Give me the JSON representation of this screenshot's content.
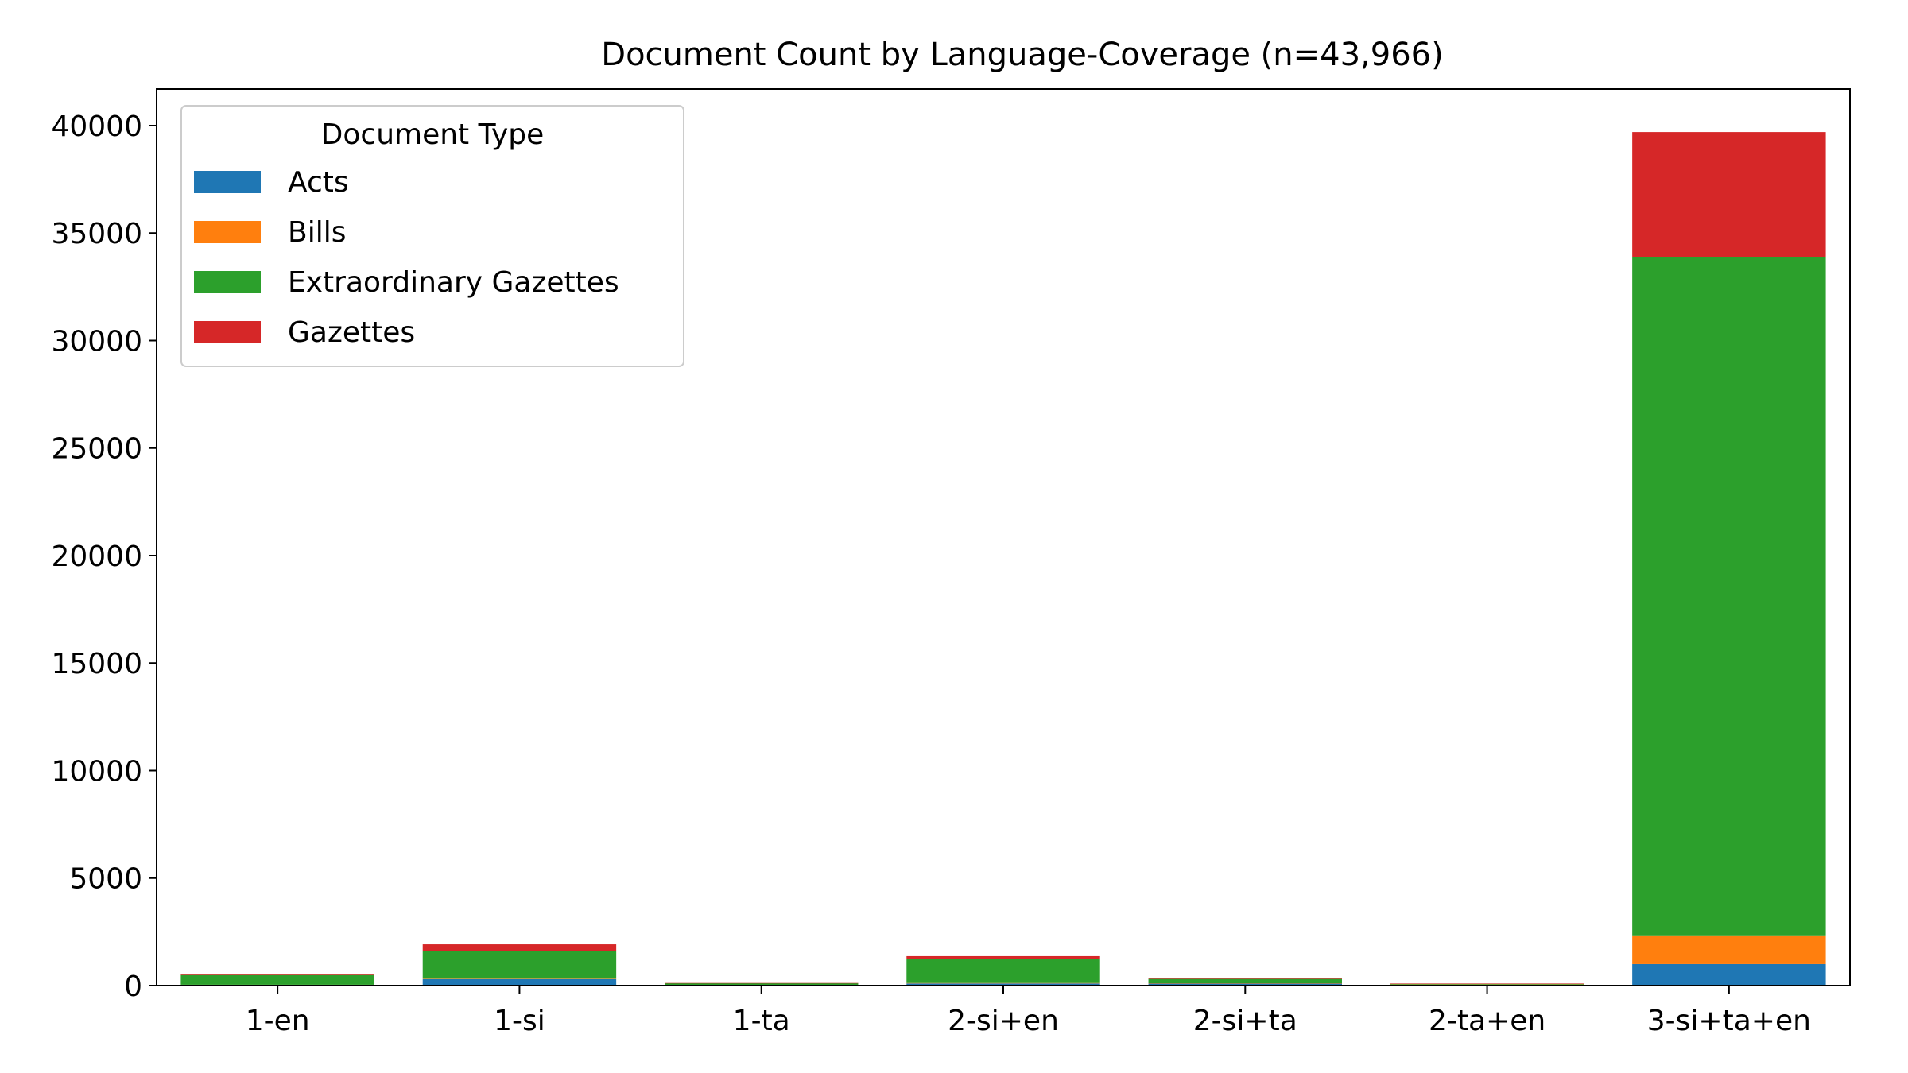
{
  "chart_data": {
    "type": "bar",
    "stacked": true,
    "title": "Document Count by Language-Coverage (n=43,966)",
    "xlabel": "",
    "ylabel": "",
    "categories": [
      "1-en",
      "1-si",
      "1-ta",
      "2-si+en",
      "2-si+ta",
      "2-ta+en",
      "3-si+ta+en"
    ],
    "ylim": [
      0,
      41700
    ],
    "yticks": [
      0,
      5000,
      10000,
      15000,
      20000,
      25000,
      30000,
      35000,
      40000
    ],
    "grid": false,
    "legend": {
      "title": "Document Type",
      "placement": "top-left"
    },
    "series": [
      {
        "name": "Acts",
        "color": "#1f77b4",
        "values": [
          20,
          300,
          10,
          100,
          100,
          10,
          1000
        ]
      },
      {
        "name": "Bills",
        "color": "#ff7f0e",
        "values": [
          20,
          20,
          5,
          20,
          10,
          40,
          1300
        ]
      },
      {
        "name": "Extraordinary Gazettes",
        "color": "#2ca02c",
        "values": [
          450,
          1300,
          100,
          1100,
          200,
          30,
          31600
        ]
      },
      {
        "name": "Gazettes",
        "color": "#d62728",
        "values": [
          30,
          300,
          5,
          150,
          30,
          20,
          5800
        ]
      }
    ]
  }
}
